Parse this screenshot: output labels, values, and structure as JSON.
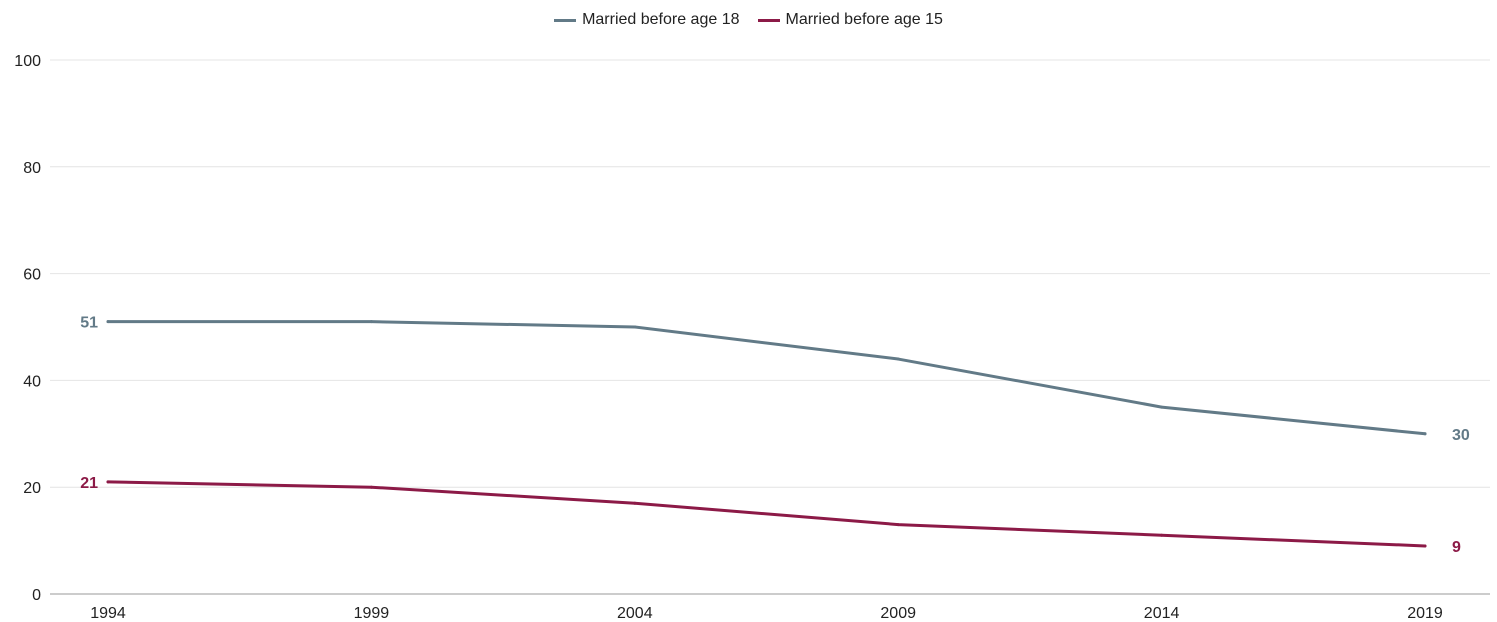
{
  "chart_data": {
    "type": "line",
    "title": "",
    "xlabel": "",
    "ylabel": "",
    "x": [
      1994,
      1999,
      2004,
      2009,
      2014,
      2019
    ],
    "ylim": [
      0,
      100
    ],
    "y_ticks": [
      0,
      20,
      40,
      60,
      80,
      100
    ],
    "x_tick_labels": [
      "1994",
      "1999",
      "2004",
      "2009",
      "2014",
      "2019"
    ],
    "y_tick_labels": [
      "0",
      "20",
      "40",
      "60",
      "80",
      "100"
    ],
    "grid": true,
    "legend_position": "top-center",
    "series": [
      {
        "name": "Married before age 18",
        "color": "#627a87",
        "values": [
          51,
          51,
          50,
          44,
          35,
          30
        ],
        "labels": {
          "start": "51",
          "end": "30"
        }
      },
      {
        "name": "Married before age 15",
        "color": "#8c1a47",
        "values": [
          21,
          20,
          17,
          13,
          11,
          9
        ],
        "labels": {
          "start": "21",
          "end": "9"
        }
      }
    ]
  }
}
